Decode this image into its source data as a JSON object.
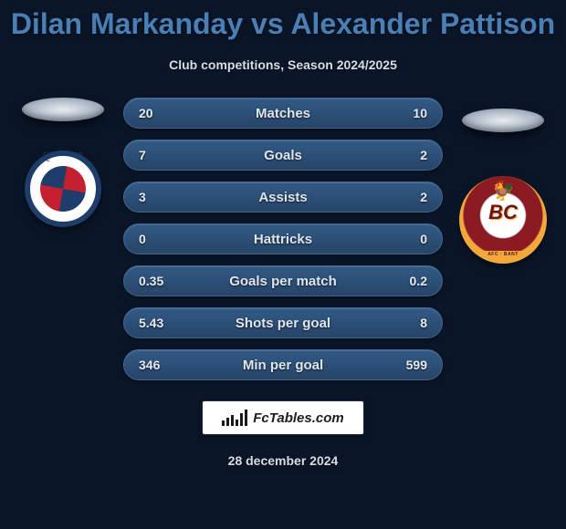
{
  "title": "Dilan Markanday vs Alexander Pattison",
  "subtitle": "Club competitions, Season 2024/2025",
  "date": "28 december 2024",
  "footer_brand": "FcTables.com",
  "colors": {
    "background": "#0a1628",
    "title": "#4a7fb5",
    "row_bg_top": "#325a86",
    "row_bg_bottom": "#264568",
    "row_border": "#42658c",
    "text_light": "#e6e9ee",
    "subtitle": "#d8dde4"
  },
  "crest_left_label": "CHESTERFIELD FC",
  "crest_right_label": "BC",
  "crest_right_banner": "AFC · BANT",
  "stats": {
    "rows": [
      {
        "label": "Matches",
        "left": "20",
        "right": "10"
      },
      {
        "label": "Goals",
        "left": "7",
        "right": "2"
      },
      {
        "label": "Assists",
        "left": "3",
        "right": "2"
      },
      {
        "label": "Hattricks",
        "left": "0",
        "right": "0"
      },
      {
        "label": "Goals per match",
        "left": "0.35",
        "right": "0.2"
      },
      {
        "label": "Shots per goal",
        "left": "5.43",
        "right": "8"
      },
      {
        "label": "Min per goal",
        "left": "346",
        "right": "599"
      }
    ]
  },
  "footer_bars_heights": [
    6,
    9,
    12,
    7,
    14,
    18
  ]
}
